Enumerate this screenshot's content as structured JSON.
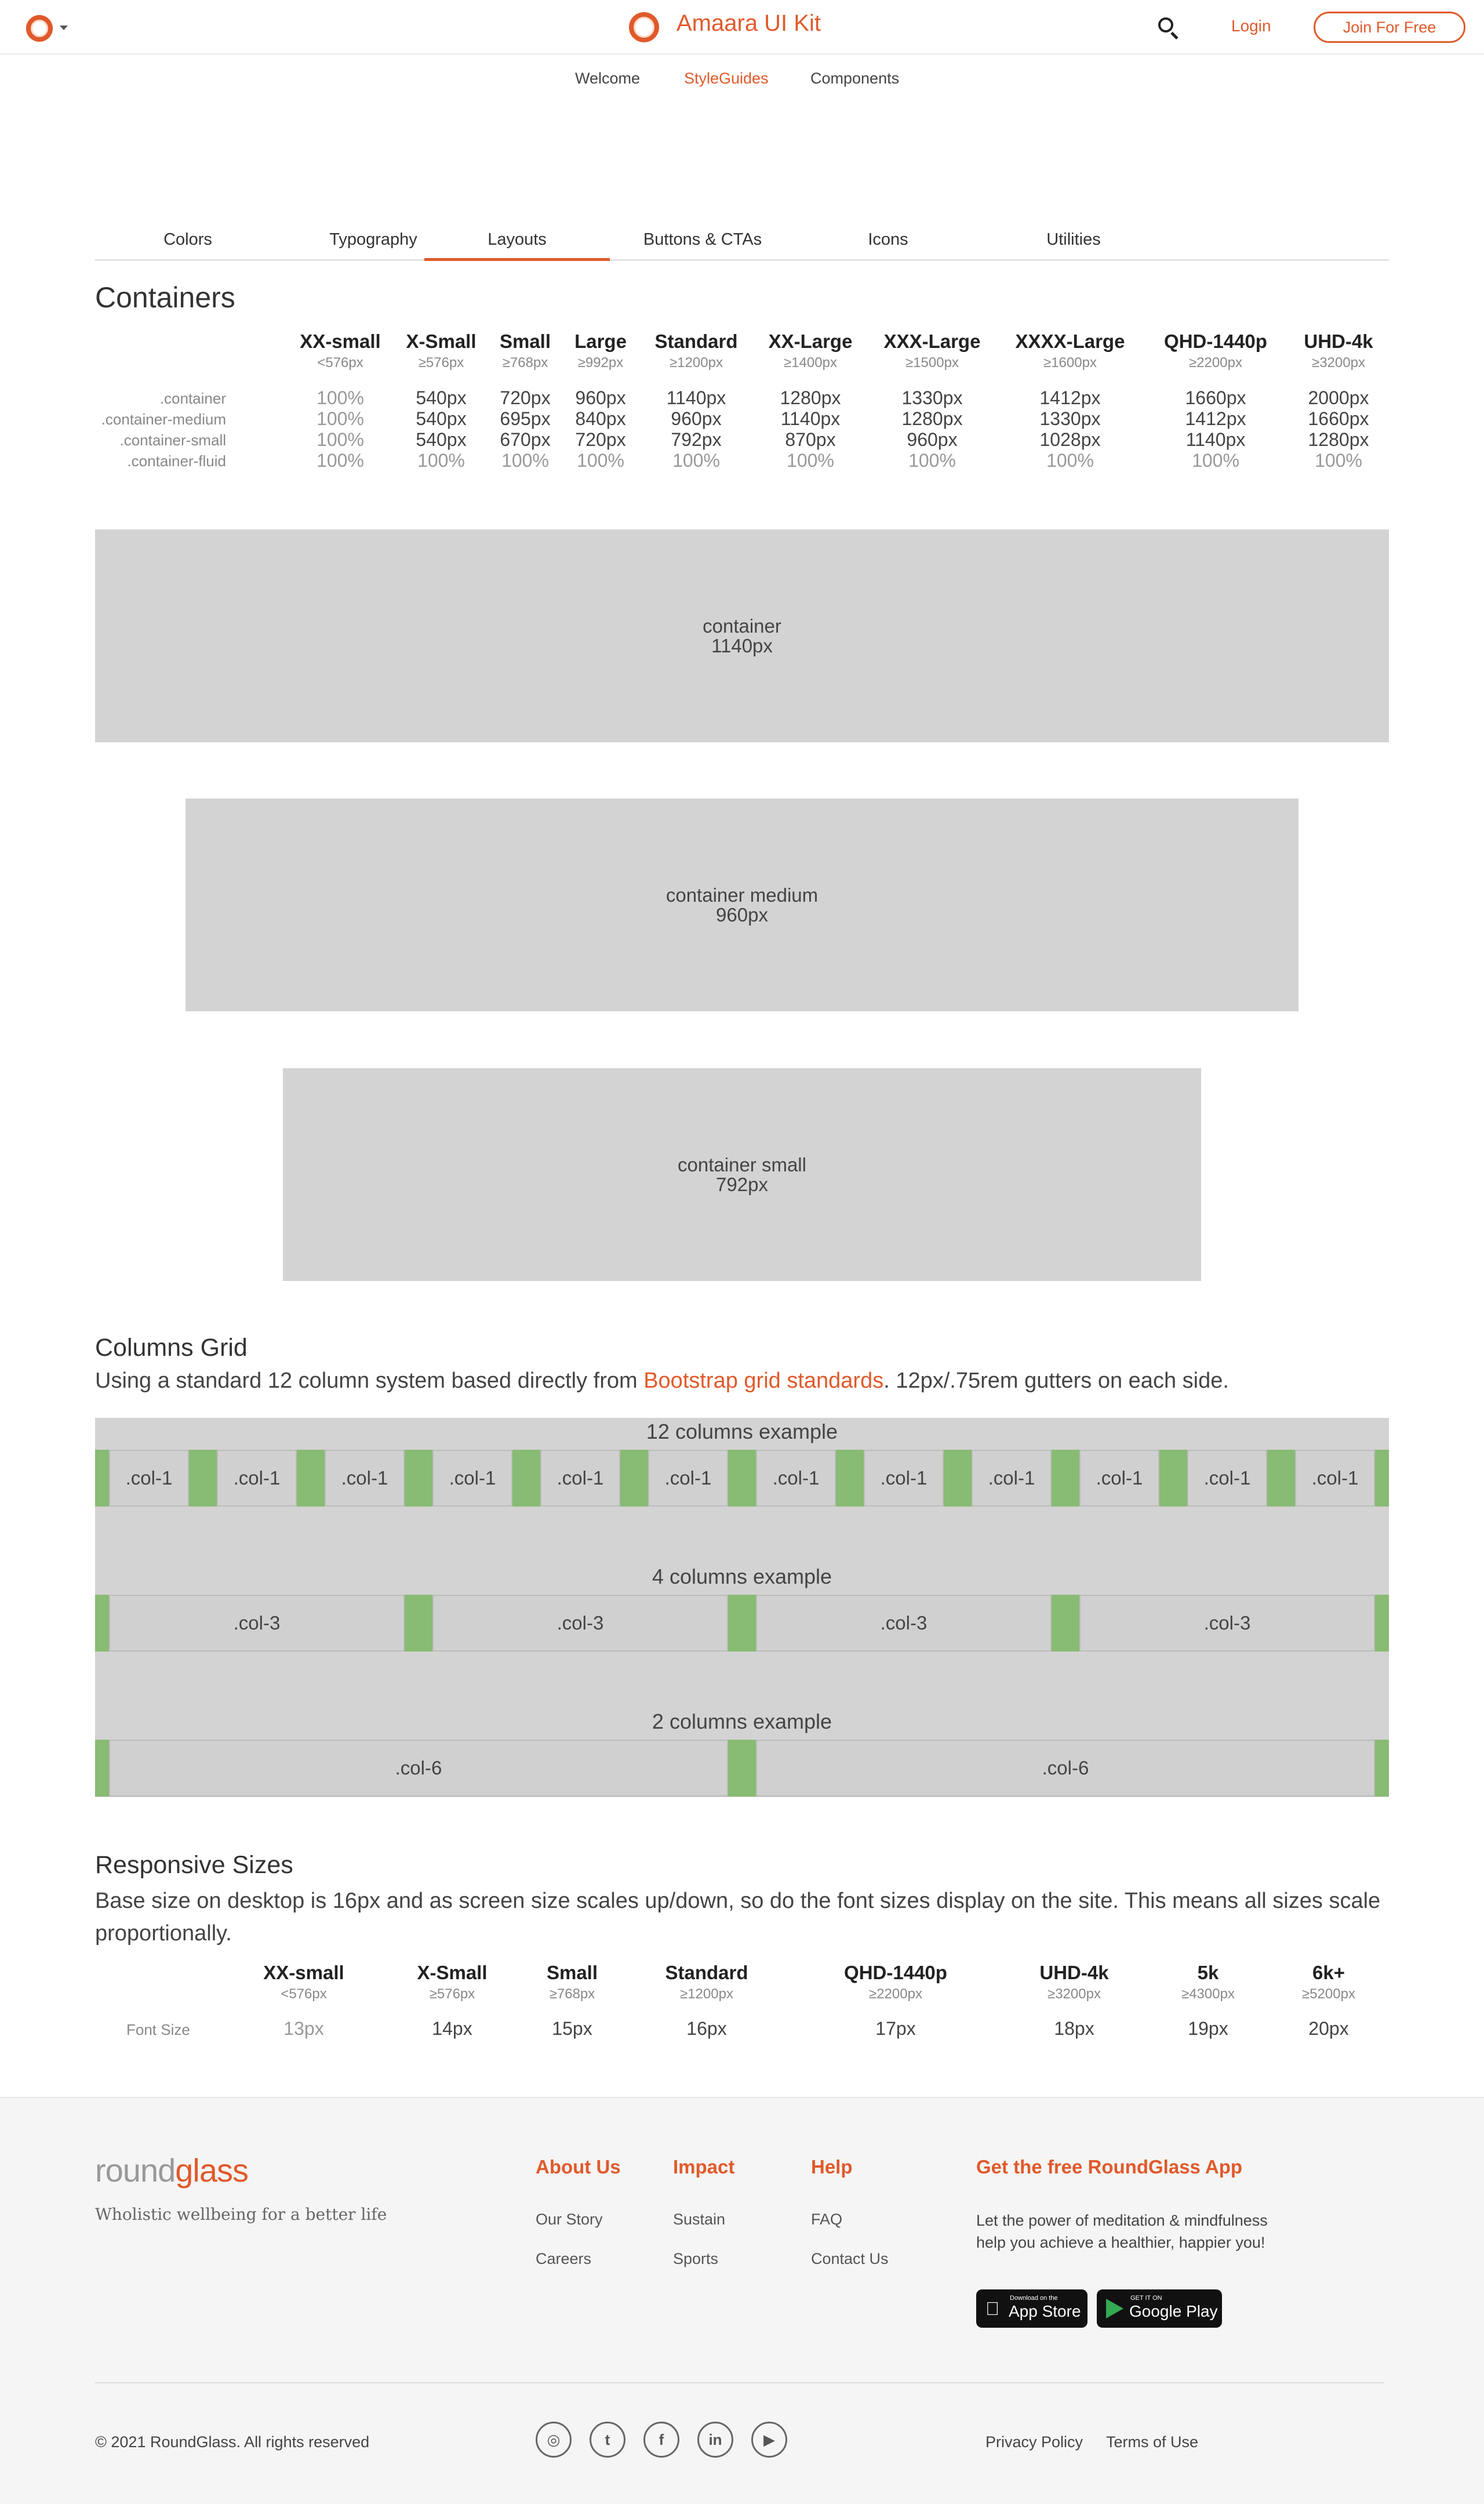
{
  "header": {
    "brand": "Amaara UI Kit",
    "login": "Login",
    "join": "Join For Free"
  },
  "subnav": [
    "Welcome",
    "StyleGuides",
    "Components"
  ],
  "tabs": [
    "Colors",
    "Typography",
    "Layouts",
    "Buttons & CTAs",
    "Icons",
    "Utilities"
  ],
  "active_tab": "Layouts",
  "containers": {
    "title": "Containers",
    "breakpoints": [
      {
        "name": "XX-small",
        "min": "<576px"
      },
      {
        "name": "X-Small",
        "min": "≥576px"
      },
      {
        "name": "Small",
        "min": "≥768px"
      },
      {
        "name": "Large",
        "min": "≥992px"
      },
      {
        "name": "Standard",
        "min": "≥1200px"
      },
      {
        "name": "XX-Large",
        "min": "≥1400px"
      },
      {
        "name": "XXX-Large",
        "min": "≥1500px"
      },
      {
        "name": "XXXX-Large",
        "min": "≥1600px"
      },
      {
        "name": "QHD-1440p",
        "min": "≥2200px"
      },
      {
        "name": "UHD-4k",
        "min": "≥3200px"
      }
    ],
    "rows": [
      {
        "label": ".container",
        "values": [
          "100%",
          "540px",
          "720px",
          "960px",
          "1140px",
          "1280px",
          "1330px",
          "1412px",
          "1660px",
          "2000px"
        ]
      },
      {
        "label": ".container-medium",
        "values": [
          "100%",
          "540px",
          "695px",
          "840px",
          "960px",
          "1140px",
          "1280px",
          "1330px",
          "1412px",
          "1660px"
        ]
      },
      {
        "label": ".container-small",
        "values": [
          "100%",
          "540px",
          "670px",
          "720px",
          "792px",
          "870px",
          "960px",
          "1028px",
          "1140px",
          "1280px"
        ]
      },
      {
        "label": ".container-fluid",
        "values": [
          "100%",
          "100%",
          "100%",
          "100%",
          "100%",
          "100%",
          "100%",
          "100%",
          "100%",
          "100%"
        ]
      }
    ]
  },
  "demos": [
    {
      "name": "container",
      "size": "1140px"
    },
    {
      "name": "container medium",
      "size": "960px"
    },
    {
      "name": "container small",
      "size": "792px"
    }
  ],
  "columns_grid": {
    "title": "Columns Grid",
    "desc_before": "Using a standard 12 column system based directly from ",
    "desc_link": "Bootstrap grid standards",
    "desc_after": ". 12px/.75rem gutters on each side.",
    "examples": [
      {
        "title": "12 columns example",
        "label": ".col-1",
        "count": 12
      },
      {
        "title": "4 columns example",
        "label": ".col-3",
        "count": 4
      },
      {
        "title": "2 columns example",
        "label": ".col-6",
        "count": 2
      }
    ]
  },
  "responsive": {
    "title": "Responsive Sizes",
    "desc": "Base size on desktop is 16px and as screen size scales up/down, so do the font sizes display on the site. This means all sizes scale proportionally.",
    "row_label": "Font Size",
    "breakpoints": [
      {
        "name": "XX-small",
        "min": "<576px",
        "size": "13px"
      },
      {
        "name": "X-Small",
        "min": "≥576px",
        "size": "14px"
      },
      {
        "name": "Small",
        "min": "≥768px",
        "size": "15px"
      },
      {
        "name": "Standard",
        "min": "≥1200px",
        "size": "16px"
      },
      {
        "name": "QHD-1440p",
        "min": "≥2200px",
        "size": "17px"
      },
      {
        "name": "UHD-4k",
        "min": "≥3200px",
        "size": "18px"
      },
      {
        "name": "5k",
        "min": "≥4300px",
        "size": "19px"
      },
      {
        "name": "6k+",
        "min": "≥5200px",
        "size": "20px"
      }
    ]
  },
  "footer": {
    "logo_a": "round",
    "logo_b": "glass",
    "tagline": "Wholistic wellbeing for a better life",
    "about": {
      "title": "About Us",
      "links": [
        "Our Story",
        "Careers"
      ]
    },
    "impact": {
      "title": "Impact",
      "links": [
        "Sustain",
        "Sports"
      ]
    },
    "help": {
      "title": "Help",
      "links": [
        "FAQ",
        "Contact Us"
      ]
    },
    "app": {
      "title": "Get the free RoundGlass App",
      "desc": "Let the power of meditation & mindfulness help you achieve a healthier, happier you!",
      "appstore_small": "Download on the",
      "appstore_big": "App Store",
      "play_small": "GET IT ON",
      "play_big": "Google Play"
    },
    "copyright": "© 2021 RoundGlass. All rights reserved",
    "social": [
      "instagram-icon",
      "twitter-icon",
      "facebook-icon",
      "linkedin-icon",
      "youtube-icon"
    ],
    "privacy": "Privacy Policy",
    "terms": "Terms of Use"
  },
  "colors": {
    "accent": "#e05a2b",
    "gutter": "#88bb73",
    "box": "#d3d3d3"
  }
}
